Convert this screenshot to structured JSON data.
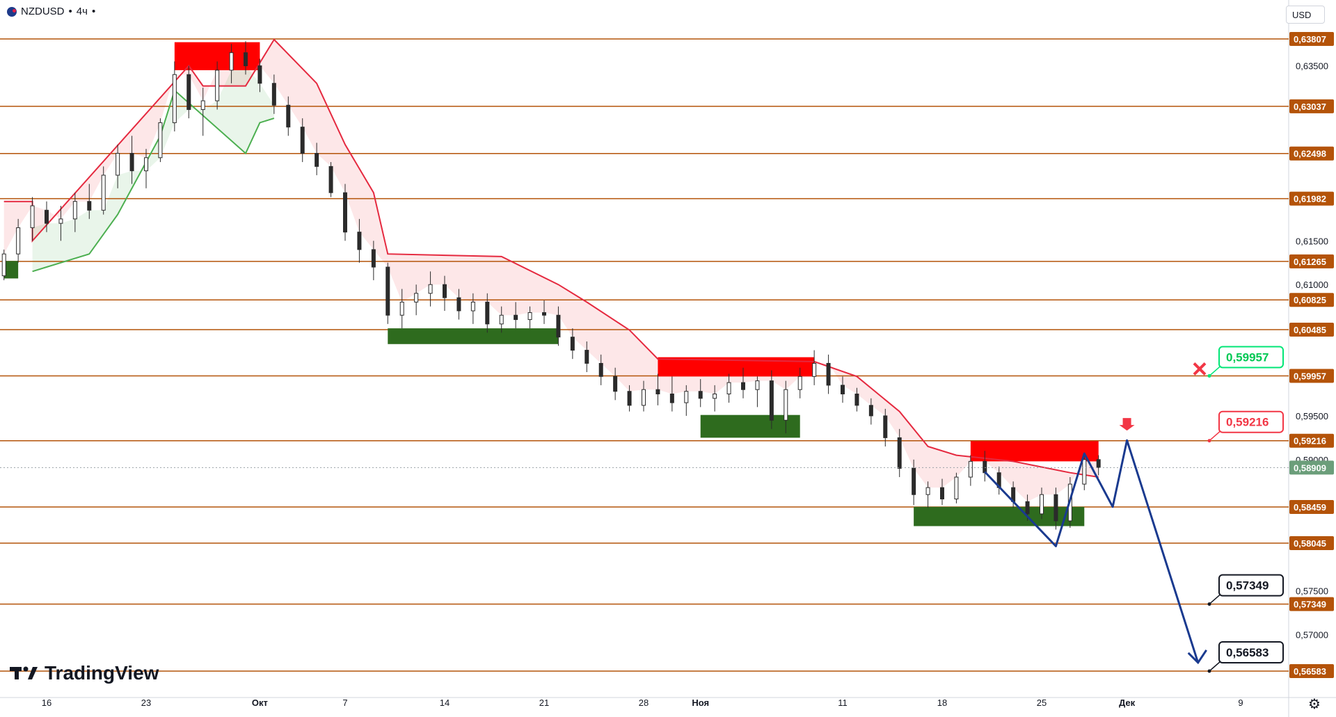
{
  "header": {
    "symbol": "NZDUSD",
    "timeframe": "4ч",
    "dot": "•"
  },
  "currency_button": "USD",
  "logo_text": "TradingView",
  "colors": {
    "level_line": "#b45309",
    "level_label_bg": "#b45309",
    "resistance_zone": "#ff0000",
    "support_zone": "#2e6b1e",
    "bear_line": "#e5293f",
    "bull_line": "#4caf50",
    "projection": "#1a3a8f",
    "current_price_bg": "#6b9e7a"
  },
  "chart_data": {
    "type": "candlestick",
    "symbol": "NZDUSD",
    "interval": "4h",
    "x_ticks": [
      "16",
      "23",
      "Окт",
      "7",
      "14",
      "21",
      "28",
      "Ноя",
      "11",
      "18",
      "25",
      "Дек",
      "9"
    ],
    "x_tick_dates": [
      "2024-09-16",
      "2024-09-23",
      "2024-10-01",
      "2024-10-07",
      "2024-10-14",
      "2024-10-21",
      "2024-10-28",
      "2024-11-01",
      "2024-11-11",
      "2024-11-18",
      "2024-11-25",
      "2024-12-01",
      "2024-12-09"
    ],
    "y_ticks": [
      "0,63500",
      "0,61500",
      "0,61000",
      "0,59500",
      "0,59000",
      "0,57500",
      "0,57000"
    ],
    "y_tick_values": [
      0.635,
      0.615,
      0.61,
      0.595,
      0.59,
      0.575,
      0.57
    ],
    "ylim": [
      0.5638,
      0.6394
    ],
    "levels": [
      {
        "label": "0,63807",
        "value": 0.63807
      },
      {
        "label": "0,63037",
        "value": 0.63037
      },
      {
        "label": "0,62498",
        "value": 0.62498
      },
      {
        "label": "0,61982",
        "value": 0.61982
      },
      {
        "label": "0,61265",
        "value": 0.61265
      },
      {
        "label": "0,60825",
        "value": 0.60825
      },
      {
        "label": "0,60485",
        "value": 0.60485
      },
      {
        "label": "0,59957",
        "value": 0.59957
      },
      {
        "label": "0,59216",
        "value": 0.59216
      },
      {
        "label": "0,58459",
        "value": 0.58459
      },
      {
        "label": "0,58045",
        "value": 0.58045
      },
      {
        "label": "0,57349",
        "value": 0.57349
      },
      {
        "label": "0,56583",
        "value": 0.56583
      }
    ],
    "current_price": {
      "label": "0,58909",
      "value": 0.58909
    },
    "callouts": [
      {
        "label": "0,59957",
        "value": 0.59957,
        "style": "green",
        "marker": "cross"
      },
      {
        "label": "0,59216",
        "value": 0.59216,
        "style": "red"
      },
      {
        "label": "0,57349",
        "value": 0.57349,
        "style": "black"
      },
      {
        "label": "0,56583",
        "value": 0.56583,
        "style": "black"
      }
    ],
    "zones": [
      {
        "kind": "resistance",
        "x0": "2024-09-25",
        "x1": "2024-10-01",
        "y0": 0.6345,
        "y1": 0.6377
      },
      {
        "kind": "support",
        "x0": "2024-09-13",
        "x1": "2024-09-14",
        "y0": 0.6107,
        "y1": 0.6127
      },
      {
        "kind": "support",
        "x0": "2024-10-10",
        "x1": "2024-10-22",
        "y0": 0.6032,
        "y1": 0.605
      },
      {
        "kind": "resistance",
        "x0": "2024-10-29",
        "x1": "2024-11-09",
        "y0": 0.5995,
        "y1": 0.6017
      },
      {
        "kind": "support",
        "x0": "2024-11-01",
        "x1": "2024-11-08",
        "y0": 0.5925,
        "y1": 0.5951
      },
      {
        "kind": "resistance",
        "x0": "2024-11-20",
        "x1": "2024-11-29",
        "y0": 0.5898,
        "y1": 0.5921
      },
      {
        "kind": "support",
        "x0": "2024-11-16",
        "x1": "2024-11-28",
        "y0": 0.5824,
        "y1": 0.5846
      }
    ],
    "bear_trail": [
      [
        "2024-09-13",
        0.6195
      ],
      [
        "2024-09-15",
        0.6195
      ],
      [
        "2024-09-15",
        0.615
      ],
      [
        "2024-09-26",
        0.635
      ],
      [
        "2024-09-27",
        0.6327
      ],
      [
        "2024-09-30",
        0.6327
      ],
      [
        "2024-10-02",
        0.638
      ],
      [
        "2024-10-05",
        0.633
      ],
      [
        "2024-10-07",
        0.626
      ],
      [
        "2024-10-09",
        0.6205
      ],
      [
        "2024-10-10",
        0.6135
      ],
      [
        "2024-10-18",
        0.6132
      ],
      [
        "2024-10-22",
        0.61
      ],
      [
        "2024-10-24",
        0.608
      ],
      [
        "2024-10-27",
        0.6048
      ],
      [
        "2024-10-29",
        0.6015
      ],
      [
        "2024-11-09",
        0.6012
      ],
      [
        "2024-11-12",
        0.5995
      ],
      [
        "2024-11-15",
        0.5955
      ],
      [
        "2024-11-17",
        0.5915
      ],
      [
        "2024-11-19",
        0.5905
      ],
      [
        "2024-11-23",
        0.5898
      ],
      [
        "2024-11-27",
        0.5885
      ],
      [
        "2024-11-29",
        0.588
      ]
    ],
    "bull_trail": [
      [
        "2024-09-15",
        0.6115
      ],
      [
        "2024-09-16",
        0.612
      ],
      [
        "2024-09-19",
        0.6135
      ],
      [
        "2024-09-21",
        0.618
      ],
      [
        "2024-09-24",
        0.627
      ],
      [
        "2024-09-25",
        0.6322
      ],
      [
        "2024-09-30",
        0.625
      ],
      [
        "2024-10-01",
        0.6285
      ],
      [
        "2024-10-02",
        0.629
      ]
    ],
    "projection": [
      [
        "2024-11-21",
        0.5886
      ],
      [
        "2024-11-26",
        0.5801
      ],
      [
        "2024-11-28",
        0.5907
      ],
      [
        "2024-11-30",
        0.5846
      ],
      [
        "2024-12-01",
        0.5922
      ],
      [
        "2024-12-06",
        0.5668
      ]
    ],
    "candles": [
      [
        "2024-09-13",
        0.611,
        0.614,
        0.6105,
        0.6135
      ],
      [
        "2024-09-14",
        0.6135,
        0.6175,
        0.6125,
        0.6165
      ],
      [
        "2024-09-15",
        0.6165,
        0.62,
        0.615,
        0.619
      ],
      [
        "2024-09-16",
        0.6185,
        0.6195,
        0.616,
        0.617
      ],
      [
        "2024-09-17",
        0.617,
        0.619,
        0.615,
        0.6175
      ],
      [
        "2024-09-18",
        0.6175,
        0.6205,
        0.616,
        0.6195
      ],
      [
        "2024-09-19",
        0.6195,
        0.6215,
        0.6175,
        0.6185
      ],
      [
        "2024-09-20",
        0.6185,
        0.6235,
        0.618,
        0.6225
      ],
      [
        "2024-09-21",
        0.6225,
        0.626,
        0.621,
        0.625
      ],
      [
        "2024-09-22",
        0.625,
        0.627,
        0.6215,
        0.623
      ],
      [
        "2024-09-23",
        0.623,
        0.6255,
        0.621,
        0.6245
      ],
      [
        "2024-09-24",
        0.6245,
        0.629,
        0.624,
        0.6285
      ],
      [
        "2024-09-25",
        0.6285,
        0.6355,
        0.6275,
        0.634
      ],
      [
        "2024-09-26",
        0.634,
        0.635,
        0.629,
        0.63
      ],
      [
        "2024-09-27",
        0.63,
        0.6325,
        0.627,
        0.631
      ],
      [
        "2024-09-28",
        0.631,
        0.6355,
        0.63,
        0.6345
      ],
      [
        "2024-09-29",
        0.6345,
        0.6375,
        0.633,
        0.6365
      ],
      [
        "2024-09-30",
        0.6365,
        0.6378,
        0.634,
        0.635
      ],
      [
        "2024-10-01",
        0.635,
        0.6358,
        0.632,
        0.633
      ],
      [
        "2024-10-02",
        0.633,
        0.634,
        0.6295,
        0.6305
      ],
      [
        "2024-10-03",
        0.6305,
        0.6315,
        0.627,
        0.628
      ],
      [
        "2024-10-04",
        0.628,
        0.629,
        0.624,
        0.625
      ],
      [
        "2024-10-05",
        0.625,
        0.6262,
        0.6225,
        0.6235
      ],
      [
        "2024-10-06",
        0.6235,
        0.624,
        0.62,
        0.6205
      ],
      [
        "2024-10-07",
        0.6205,
        0.6215,
        0.615,
        0.616
      ],
      [
        "2024-10-08",
        0.616,
        0.6175,
        0.6125,
        0.614
      ],
      [
        "2024-10-09",
        0.614,
        0.615,
        0.6105,
        0.612
      ],
      [
        "2024-10-10",
        0.612,
        0.6125,
        0.6055,
        0.6065
      ],
      [
        "2024-10-11",
        0.6065,
        0.6095,
        0.605,
        0.608
      ],
      [
        "2024-10-12",
        0.608,
        0.61,
        0.6065,
        0.609
      ],
      [
        "2024-10-13",
        0.609,
        0.6115,
        0.6075,
        0.61
      ],
      [
        "2024-10-14",
        0.61,
        0.611,
        0.607,
        0.6085
      ],
      [
        "2024-10-15",
        0.6085,
        0.6095,
        0.606,
        0.607
      ],
      [
        "2024-10-16",
        0.607,
        0.609,
        0.6055,
        0.608
      ],
      [
        "2024-10-17",
        0.608,
        0.609,
        0.6045,
        0.6055
      ],
      [
        "2024-10-18",
        0.6055,
        0.6075,
        0.6045,
        0.6065
      ],
      [
        "2024-10-19",
        0.6065,
        0.608,
        0.605,
        0.606
      ],
      [
        "2024-10-20",
        0.606,
        0.6075,
        0.605,
        0.6068
      ],
      [
        "2024-10-21",
        0.6068,
        0.6082,
        0.6055,
        0.6065
      ],
      [
        "2024-10-22",
        0.6065,
        0.6075,
        0.603,
        0.604
      ],
      [
        "2024-10-23",
        0.604,
        0.605,
        0.6015,
        0.6025
      ],
      [
        "2024-10-24",
        0.6025,
        0.6035,
        0.6,
        0.601
      ],
      [
        "2024-10-25",
        0.601,
        0.602,
        0.5985,
        0.5995
      ],
      [
        "2024-10-26",
        0.5995,
        0.6005,
        0.5968,
        0.5978
      ],
      [
        "2024-10-27",
        0.5978,
        0.5985,
        0.5955,
        0.5962
      ],
      [
        "2024-10-28",
        0.5962,
        0.599,
        0.5955,
        0.598
      ],
      [
        "2024-10-29",
        0.598,
        0.5998,
        0.5962,
        0.5975
      ],
      [
        "2024-10-30",
        0.5975,
        0.5995,
        0.5955,
        0.5965
      ],
      [
        "2024-10-31",
        0.5965,
        0.5985,
        0.595,
        0.5978
      ],
      [
        "2024-11-01",
        0.5978,
        0.5992,
        0.596,
        0.597
      ],
      [
        "2024-11-02",
        0.597,
        0.5985,
        0.5955,
        0.5975
      ],
      [
        "2024-11-03",
        0.5975,
        0.5998,
        0.5965,
        0.5988
      ],
      [
        "2024-11-04",
        0.5988,
        0.6005,
        0.597,
        0.598
      ],
      [
        "2024-11-05",
        0.598,
        0.5995,
        0.596,
        0.599
      ],
      [
        "2024-11-06",
        0.599,
        0.6002,
        0.5935,
        0.5945
      ],
      [
        "2024-11-07",
        0.5945,
        0.599,
        0.593,
        0.598
      ],
      [
        "2024-11-08",
        0.598,
        0.6005,
        0.597,
        0.5995
      ],
      [
        "2024-11-09",
        0.5995,
        0.6025,
        0.5985,
        0.601
      ],
      [
        "2024-11-10",
        0.601,
        0.602,
        0.5975,
        0.5985
      ],
      [
        "2024-11-11",
        0.5985,
        0.5995,
        0.5965,
        0.5975
      ],
      [
        "2024-11-12",
        0.5975,
        0.5982,
        0.5955,
        0.5962
      ],
      [
        "2024-11-13",
        0.5962,
        0.597,
        0.594,
        0.595
      ],
      [
        "2024-11-14",
        0.595,
        0.5958,
        0.5915,
        0.5925
      ],
      [
        "2024-11-15",
        0.5925,
        0.5935,
        0.588,
        0.589
      ],
      [
        "2024-11-16",
        0.589,
        0.59,
        0.5848,
        0.586
      ],
      [
        "2024-11-17",
        0.586,
        0.5875,
        0.5845,
        0.5868
      ],
      [
        "2024-11-18",
        0.5868,
        0.5878,
        0.5848,
        0.5855
      ],
      [
        "2024-11-19",
        0.5855,
        0.5885,
        0.585,
        0.588
      ],
      [
        "2024-11-20",
        0.588,
        0.5905,
        0.587,
        0.5898
      ],
      [
        "2024-11-21",
        0.5898,
        0.591,
        0.5875,
        0.5885
      ],
      [
        "2024-11-22",
        0.5885,
        0.5892,
        0.586,
        0.5868
      ],
      [
        "2024-11-23",
        0.5868,
        0.5875,
        0.5845,
        0.5852
      ],
      [
        "2024-11-24",
        0.5852,
        0.586,
        0.583,
        0.5838
      ],
      [
        "2024-11-25",
        0.5838,
        0.5868,
        0.5832,
        0.586
      ],
      [
        "2024-11-26",
        0.586,
        0.5868,
        0.582,
        0.583
      ],
      [
        "2024-11-27",
        0.583,
        0.588,
        0.5822,
        0.5872
      ],
      [
        "2024-11-28",
        0.5872,
        0.5908,
        0.5865,
        0.59
      ],
      [
        "2024-11-29",
        0.59,
        0.5905,
        0.5882,
        0.5891
      ]
    ]
  }
}
